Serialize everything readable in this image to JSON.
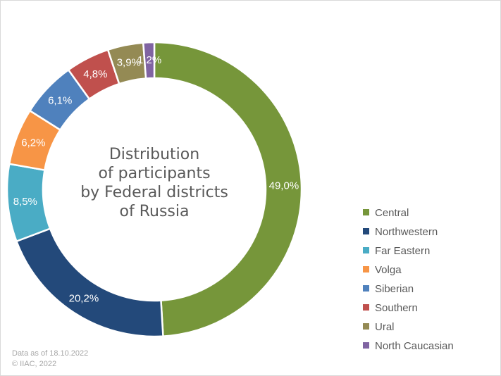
{
  "chart_data": {
    "type": "pie",
    "style": "donut",
    "title": "Distribution of participants by Federal districts of Russia",
    "title_lines": [
      "Distribution",
      "of participants",
      "by Federal districts",
      "of Russia"
    ],
    "start_angle_deg": 0,
    "direction": "clockwise",
    "legend_position": "right",
    "categories": [
      "Central",
      "Northwestern",
      "Far Eastern",
      "Volga",
      "Siberian",
      "Southern",
      "Ural",
      "North Caucasian"
    ],
    "values": [
      49.0,
      20.2,
      8.5,
      6.2,
      6.1,
      4.8,
      3.9,
      1.2
    ],
    "value_labels": [
      "49,0%",
      "20,2%",
      "8,5%",
      "6,2%",
      "6,1%",
      "4,8%",
      "3,9%",
      "1,2%"
    ],
    "colors": [
      "#76963a",
      "#23497a",
      "#4aacc5",
      "#f79546",
      "#4f81bd",
      "#c0504d",
      "#948a54",
      "#8064a2"
    ]
  },
  "footer": {
    "line1": "Data as of 18.10.2022",
    "line2": "© IIAC, 2022"
  }
}
